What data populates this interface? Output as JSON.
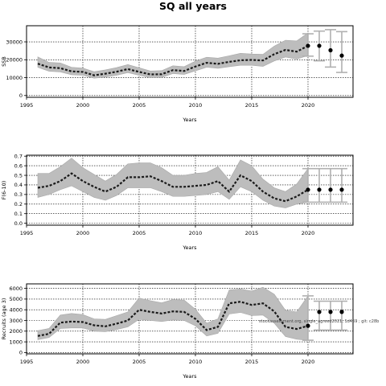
{
  "figure": {
    "title": "SQ all years",
    "watermark": "stockassessment.org, single_agreed2021, 1d469 ; git: c28b"
  },
  "chart_data": [
    {
      "type": "line",
      "panel": "ssb",
      "ylabel": "SSB",
      "xlabel": "Years",
      "xlim": [
        1995,
        2024
      ],
      "ylim": [
        -1000,
        39000
      ],
      "xticks": [
        1995,
        2000,
        2005,
        2010,
        2015,
        2020
      ],
      "yticks": [
        0,
        10000,
        20000,
        30000
      ],
      "ytick_labels": [
        "0",
        "10000",
        "20000",
        "30000"
      ],
      "grid": true,
      "x": [
        1996,
        1997,
        1998,
        1999,
        2000,
        2001,
        2002,
        2003,
        2004,
        2005,
        2006,
        2007,
        2008,
        2009,
        2010,
        2011,
        2012,
        2013,
        2014,
        2015,
        2016,
        2017,
        2018,
        2019,
        2020
      ],
      "estimate": [
        17800,
        15700,
        15300,
        13500,
        13200,
        11300,
        12200,
        13300,
        14800,
        13200,
        11800,
        11900,
        14200,
        13700,
        16200,
        18300,
        17700,
        18800,
        19700,
        19900,
        19600,
        23100,
        25500,
        24500,
        27800
      ],
      "lower": [
        15800,
        13600,
        13200,
        11600,
        11300,
        9700,
        10300,
        11300,
        12800,
        11300,
        10000,
        10100,
        12300,
        11800,
        13800,
        15800,
        15200,
        16100,
        16900,
        16900,
        16300,
        19300,
        21500,
        20300,
        22400
      ],
      "upper": [
        21600,
        18500,
        18200,
        15800,
        15300,
        13300,
        14300,
        15600,
        17300,
        15500,
        13700,
        13900,
        16600,
        16100,
        19200,
        21400,
        20900,
        22200,
        23600,
        23200,
        23000,
        27600,
        30900,
        30500,
        35000
      ],
      "forecast": {
        "x": [
          2020,
          2021,
          2022,
          2023
        ],
        "median": [
          27800,
          27800,
          25300,
          22300
        ],
        "low": [
          22000,
          19400,
          15900,
          12900
        ],
        "high": [
          34500,
          36000,
          36800,
          35700
        ]
      }
    },
    {
      "type": "line",
      "panel": "fbar",
      "ylabel": "F(6-10)",
      "xlabel": "Years",
      "xlim": [
        1995,
        2024
      ],
      "ylim": [
        -0.02,
        0.71
      ],
      "xticks": [
        1995,
        2000,
        2005,
        2010,
        2015,
        2020
      ],
      "yticks": [
        0.0,
        0.1,
        0.2,
        0.3,
        0.4,
        0.5,
        0.6,
        0.7
      ],
      "ytick_labels": [
        "0.0",
        "0.1",
        "0.2",
        "0.3",
        "0.4",
        "0.5",
        "0.6",
        "0.7"
      ],
      "grid": true,
      "x": [
        1996,
        1997,
        1998,
        1999,
        2000,
        2001,
        2002,
        2003,
        2004,
        2005,
        2006,
        2007,
        2008,
        2009,
        2010,
        2011,
        2012,
        2013,
        2014,
        2015,
        2016,
        2017,
        2018,
        2019,
        2020
      ],
      "estimate": [
        0.37,
        0.39,
        0.44,
        0.52,
        0.44,
        0.38,
        0.33,
        0.38,
        0.48,
        0.48,
        0.49,
        0.44,
        0.38,
        0.38,
        0.39,
        0.4,
        0.44,
        0.33,
        0.5,
        0.44,
        0.33,
        0.26,
        0.23,
        0.28,
        0.35
      ],
      "lower": [
        0.27,
        0.3,
        0.35,
        0.39,
        0.33,
        0.27,
        0.24,
        0.29,
        0.37,
        0.37,
        0.37,
        0.33,
        0.28,
        0.28,
        0.29,
        0.3,
        0.33,
        0.25,
        0.38,
        0.33,
        0.24,
        0.18,
        0.16,
        0.2,
        0.22
      ],
      "upper": [
        0.52,
        0.52,
        0.59,
        0.68,
        0.58,
        0.51,
        0.44,
        0.51,
        0.62,
        0.63,
        0.63,
        0.58,
        0.5,
        0.5,
        0.52,
        0.53,
        0.59,
        0.45,
        0.66,
        0.6,
        0.46,
        0.37,
        0.33,
        0.41,
        0.57
      ],
      "forecast": {
        "x": [
          2020,
          2021,
          2022,
          2023
        ],
        "median": [
          0.35,
          0.35,
          0.35,
          0.35
        ],
        "low": [
          0.22,
          0.22,
          0.22,
          0.22
        ],
        "high": [
          0.57,
          0.57,
          0.57,
          0.57
        ]
      }
    },
    {
      "type": "line",
      "panel": "recruits",
      "ylabel": "Recruits (age 3)",
      "xlabel": "Years",
      "xlim": [
        1995,
        2024
      ],
      "ylim": [
        -120,
        6420
      ],
      "xticks": [
        1995,
        2000,
        2005,
        2010,
        2015,
        2020
      ],
      "yticks": [
        0,
        1000,
        2000,
        3000,
        4000,
        5000,
        6000
      ],
      "ytick_labels": [
        "0",
        "1000",
        "2000",
        "3000",
        "4000",
        "5000",
        "6000"
      ],
      "grid": true,
      "x": [
        1996,
        1997,
        1998,
        1999,
        2000,
        2001,
        2002,
        2003,
        2004,
        2005,
        2006,
        2007,
        2008,
        2009,
        2010,
        2011,
        2012,
        2013,
        2014,
        2015,
        2016,
        2017,
        2018,
        2019,
        2020
      ],
      "estimate": [
        1550,
        1750,
        2800,
        2900,
        2850,
        2550,
        2450,
        2700,
        3000,
        4000,
        3800,
        3650,
        3850,
        3800,
        3150,
        2100,
        2400,
        4600,
        4750,
        4450,
        4600,
        3850,
        2400,
        2200,
        2500
      ],
      "lower": [
        1200,
        1400,
        2250,
        2300,
        2300,
        2000,
        1950,
        2150,
        2400,
        3100,
        3000,
        2900,
        3050,
        3000,
        2500,
        1550,
        1800,
        3600,
        3750,
        3450,
        3500,
        2750,
        1500,
        1250,
        1150
      ],
      "upper": [
        2050,
        2250,
        3500,
        3650,
        3550,
        3150,
        3100,
        3450,
        3800,
        5100,
        4850,
        4650,
        4950,
        4900,
        4050,
        2750,
        3150,
        5850,
        5950,
        5750,
        6100,
        5450,
        3950,
        3800,
        5300
      ],
      "forecast": {
        "x": [
          2020,
          2021,
          2022,
          2023
        ],
        "median": [
          2500,
          3800,
          3800,
          3800
        ],
        "low": [
          1150,
          2100,
          2100,
          2100
        ],
        "high": [
          5300,
          4800,
          4800,
          4800
        ]
      }
    }
  ]
}
